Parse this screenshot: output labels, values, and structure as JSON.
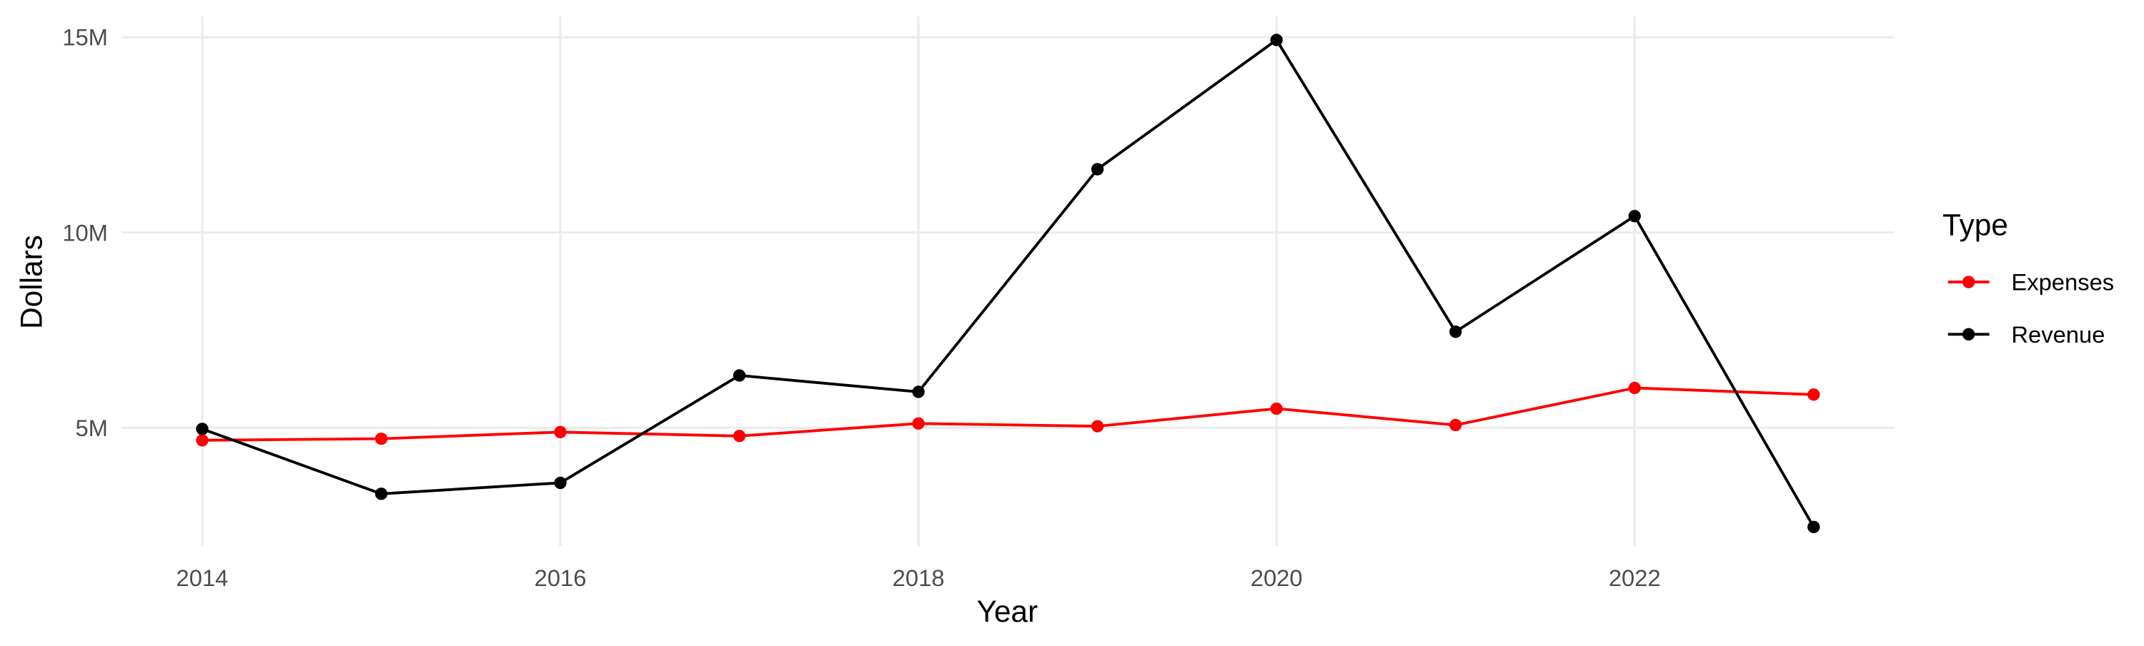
{
  "chart_data": {
    "type": "line",
    "x_label": "Year",
    "y_label": "Dollars",
    "legend_title": "Type",
    "x": [
      2014,
      2015,
      2016,
      2017,
      2018,
      2019,
      2020,
      2021,
      2022,
      2023
    ],
    "series": [
      {
        "name": "Expenses",
        "color": "#ff0000",
        "values": [
          4680000,
          4720000,
          4890000,
          4790000,
          5110000,
          5040000,
          5490000,
          5070000,
          6020000,
          5850000
        ]
      },
      {
        "name": "Revenue",
        "color": "#000000",
        "values": [
          4970000,
          3310000,
          3590000,
          6340000,
          5920000,
          11620000,
          14930000,
          7460000,
          10420000,
          2460000
        ]
      }
    ],
    "xlim": [
      2013.55,
      2023.45
    ],
    "xticks": [
      2014,
      2016,
      2018,
      2020,
      2022
    ],
    "ylim": [
      1970000,
      15530000
    ],
    "yticks": [
      {
        "value": 5000000,
        "label": "5M"
      },
      {
        "value": 10000000,
        "label": "10M"
      },
      {
        "value": 15000000,
        "label": "15M"
      }
    ],
    "grid": true,
    "legend_position": "right"
  }
}
